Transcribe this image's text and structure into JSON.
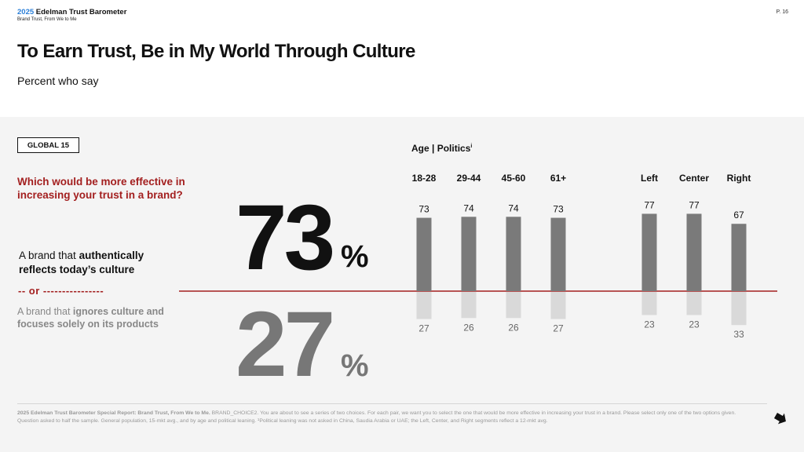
{
  "header": {
    "brand_year": "2025",
    "brand_name": "Edelman Trust Barometer",
    "brand_sub": "Brand Trust, From We to Me",
    "page_number": "P. 16"
  },
  "title": "To Earn Trust, Be in My World Through Culture",
  "subtitle": "Percent who say",
  "global_tag": "GLOBAL 15",
  "question": "Which would be more effective in increasing your trust in a brand?",
  "option1": {
    "pre": "A brand that ",
    "bold": "authentically reflects today’s culture"
  },
  "or_label": "-- or ----------------",
  "option2": {
    "pre": "A brand that ",
    "bold": "ignores culture and focuses solely on its products"
  },
  "big_values": {
    "top": "73",
    "bottom": "27",
    "unit": "%"
  },
  "chart_data": {
    "type": "bar",
    "title": "Age | Politics",
    "title_sup": "i",
    "categories": [
      "18-28",
      "29-44",
      "45-60",
      "61+",
      "Left",
      "Center",
      "Right"
    ],
    "series": [
      {
        "name": "",
        "values": [
          73,
          74,
          74,
          73,
          77,
          77,
          67
        ],
        "color": "#7a7a7a"
      },
      {
        "name": "",
        "values": [
          27,
          26,
          26,
          27,
          23,
          23,
          33
        ],
        "color": "#d9d9d9"
      }
    ],
    "divider_color": "#a31f1f"
  },
  "footnote": {
    "bold": "2025 Edelman Trust Barometer Special Report: Brand Trust, From We to Me.",
    "text": " BRAND_CHOICE2. You are about to see a series of two choices. For each pair, we want you to select the one that would be more effective in increasing your trust in a brand. Please select only one of the two options given. Question asked to half the sample. General population, 15-mkt avg., and by age and political leaning. ¹Political leaning was not asked in China, Saudia Arabia or UAE; the Left, Center, and Right segments reflect a 12-mkt avg."
  },
  "icons": {
    "next": "arrow-down-right-icon"
  }
}
